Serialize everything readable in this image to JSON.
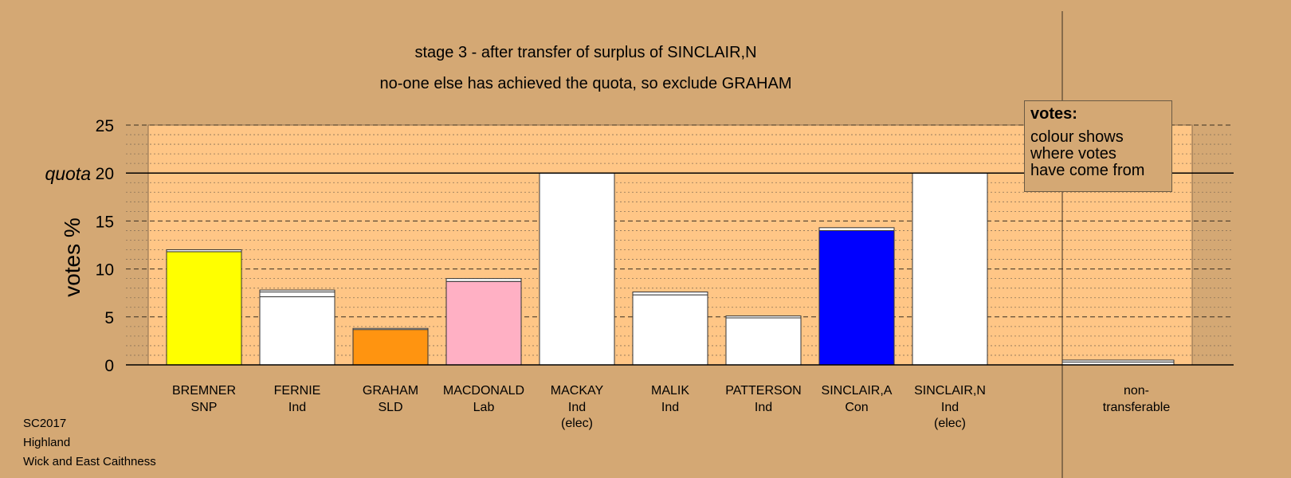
{
  "chart_data": {
    "type": "bar",
    "title": "stage 3 - after transfer of surplus of SINCLAIR,N",
    "subtitle": "no-one else has achieved the quota, so exclude GRAHAM",
    "ylabel": "votes %",
    "ylim": [
      0,
      25
    ],
    "yticks": [
      "0",
      "5",
      "10",
      "15",
      "20",
      "25"
    ],
    "quota": 20,
    "quota_label": "quota",
    "grid": true,
    "categories": [
      {
        "name": "BREMNER",
        "party": "SNP",
        "note": ""
      },
      {
        "name": "FERNIE",
        "party": "Ind",
        "note": ""
      },
      {
        "name": "GRAHAM",
        "party": "SLD",
        "note": ""
      },
      {
        "name": "MACDONALD",
        "party": "Lab",
        "note": ""
      },
      {
        "name": "MACKAY",
        "party": "Ind",
        "note": "(elec)"
      },
      {
        "name": "MALIK",
        "party": "Ind",
        "note": ""
      },
      {
        "name": "PATTERSON",
        "party": "Ind",
        "note": ""
      },
      {
        "name": "SINCLAIR,A",
        "party": "Con",
        "note": ""
      },
      {
        "name": "SINCLAIR,N",
        "party": "Ind",
        "note": "(elec)"
      }
    ],
    "bars": [
      {
        "base": 11.8,
        "base_color": "#ffff00",
        "transfers": [
          0.2
        ]
      },
      {
        "base": 7.1,
        "base_color": "#ffffff",
        "transfers": [
          0.5,
          0.2
        ]
      },
      {
        "base": 3.7,
        "base_color": "#ff9410",
        "transfers": [
          0.1
        ]
      },
      {
        "base": 8.7,
        "base_color": "#ffb0c4",
        "transfers": [
          0.3
        ]
      },
      {
        "base": 20.0,
        "base_color": "#ffffff",
        "transfers": []
      },
      {
        "base": 7.3,
        "base_color": "#ffffff",
        "transfers": [
          0.3
        ]
      },
      {
        "base": 4.9,
        "base_color": "#ffffff",
        "transfers": [
          0.2
        ]
      },
      {
        "base": 14.0,
        "base_color": "#0000ff",
        "transfers": [
          0.3
        ]
      },
      {
        "base": 20.0,
        "base_color": "#ffffff",
        "transfers": []
      }
    ],
    "non_transferable": {
      "label_line1": "non-",
      "label_line2": "transferable",
      "base": 0.3,
      "transfers": [
        0.2
      ]
    },
    "legend": {
      "title": "votes:",
      "line1": "colour shows",
      "line2": "where votes",
      "line3": "have come from"
    }
  },
  "footer": {
    "line1": "SC2017",
    "line2": "Highland",
    "line3": "Wick and East Caithness"
  }
}
